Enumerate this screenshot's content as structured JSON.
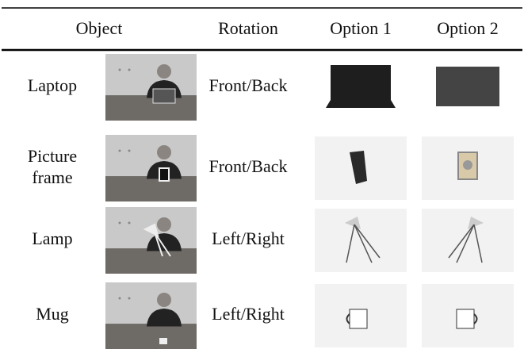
{
  "table": {
    "header": [
      "Object",
      "Rotation",
      "Option 1",
      "Option 2"
    ],
    "rows": [
      [
        "Laptop",
        "Front/Back"
      ],
      [
        "Picture",
        "frame",
        "Front/Back"
      ],
      [
        "Lamp",
        "Left/Right"
      ],
      [
        "Mug",
        "Left/Right"
      ]
    ]
  }
}
